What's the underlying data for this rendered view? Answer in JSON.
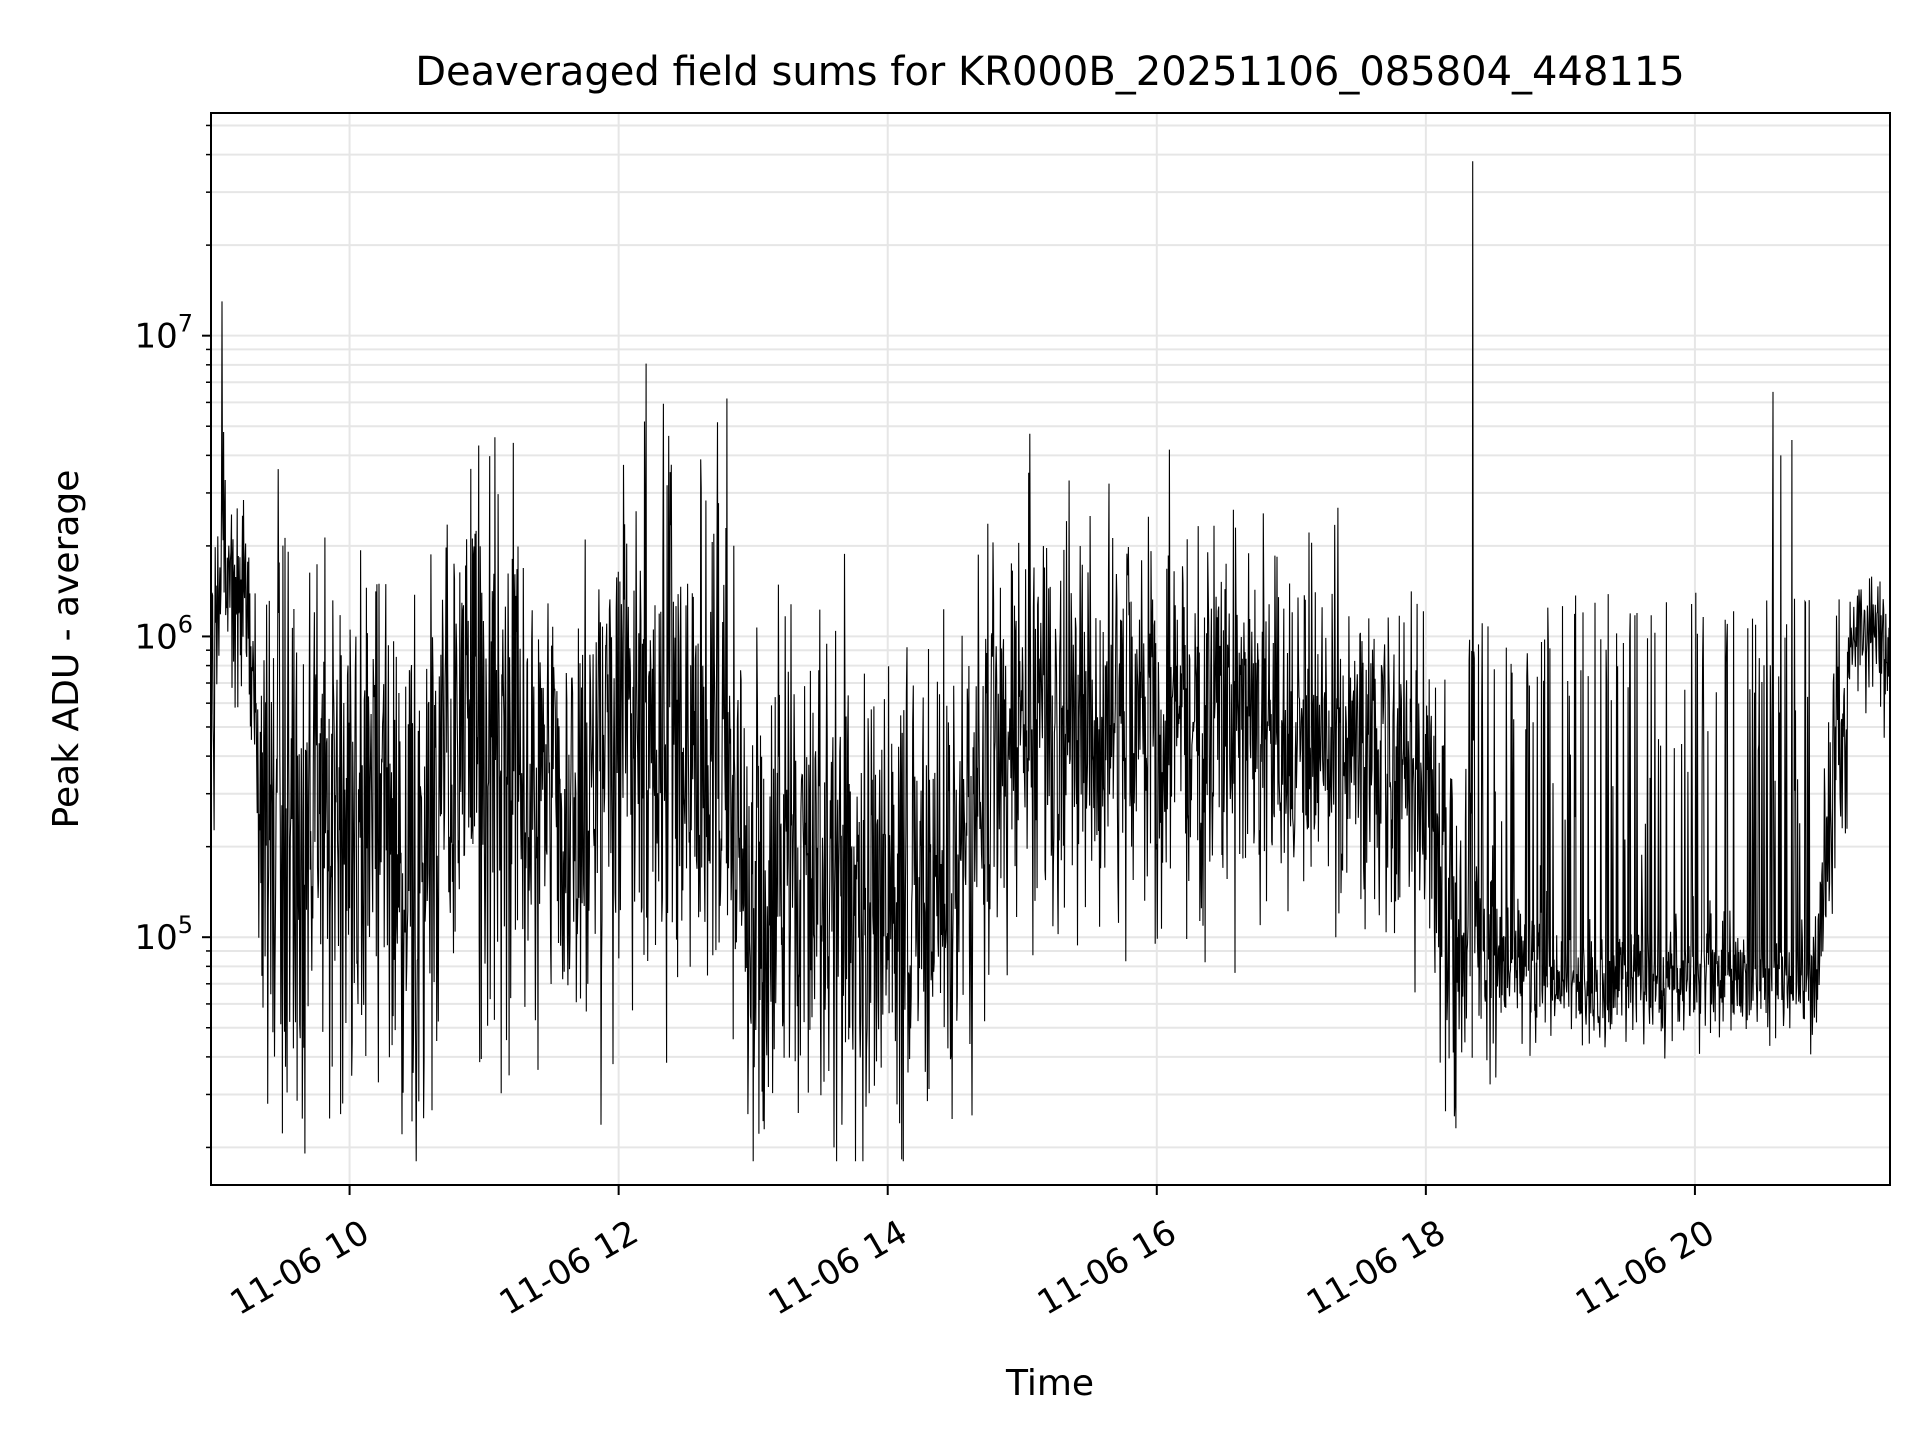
{
  "chart_data": {
    "type": "line",
    "title": "Deaveraged field sums for KR000B_20251106_085804_448115",
    "xlabel": "Time",
    "ylabel": "Peak ADU - average",
    "yscale": "log",
    "grid": true,
    "series_color": "#000000",
    "grid_color": "#e6e6e6",
    "xlim_hours": [
      8.97,
      21.45
    ],
    "ylim": [
      15000,
      55000000
    ],
    "x_ticks": [
      {
        "hour": 10,
        "label": "11-06 10"
      },
      {
        "hour": 12,
        "label": "11-06 12"
      },
      {
        "hour": 14,
        "label": "11-06 14"
      },
      {
        "hour": 16,
        "label": "11-06 16"
      },
      {
        "hour": 18,
        "label": "11-06 18"
      },
      {
        "hour": 20,
        "label": "11-06 20"
      }
    ],
    "y_ticks": [
      {
        "value": 100000,
        "base": "10",
        "exp": "5"
      },
      {
        "value": 1000000,
        "base": "10",
        "exp": "6"
      },
      {
        "value": 10000000,
        "base": "10",
        "exp": "7"
      }
    ],
    "series": [
      {
        "name": "Peak ADU - average",
        "envelope": {
          "hours": [
            8.97,
            9.05,
            9.25,
            9.35,
            9.5,
            9.8,
            10.2,
            10.6,
            10.8,
            11.0,
            11.3,
            11.7,
            12.0,
            12.4,
            12.8,
            13.0,
            13.3,
            13.6,
            13.8,
            14.0,
            14.3,
            14.5,
            14.8,
            15.1,
            15.5,
            15.8,
            16.1,
            16.5,
            16.9,
            17.3,
            17.7,
            18.0,
            18.25,
            18.6,
            19.0,
            19.5,
            20.0,
            20.5,
            20.9,
            21.05,
            21.2,
            21.45
          ],
          "medians": [
            600000,
            1600000,
            1300000,
            200000,
            170000,
            250000,
            220000,
            180000,
            600000,
            500000,
            320000,
            330000,
            520000,
            500000,
            360000,
            130000,
            170000,
            130000,
            110000,
            150000,
            140000,
            180000,
            500000,
            560000,
            500000,
            560000,
            520000,
            480000,
            520000,
            460000,
            400000,
            330000,
            110000,
            80000,
            70000,
            70000,
            70000,
            70000,
            70000,
            400000,
            1000000,
            950000
          ],
          "spreads": [
            0.35,
            0.18,
            0.2,
            0.45,
            0.45,
            0.45,
            0.45,
            0.45,
            0.35,
            0.45,
            0.45,
            0.45,
            0.45,
            0.45,
            0.45,
            0.4,
            0.4,
            0.42,
            0.42,
            0.4,
            0.4,
            0.38,
            0.35,
            0.35,
            0.35,
            0.35,
            0.32,
            0.3,
            0.3,
            0.28,
            0.28,
            0.3,
            0.35,
            0.12,
            0.1,
            0.1,
            0.1,
            0.1,
            0.1,
            0.3,
            0.1,
            0.14
          ]
        },
        "bursts": [
          {
            "start_hour": 18.3,
            "end_hour": 20.85,
            "count": 130,
            "low": 120000,
            "high": 1400000
          }
        ],
        "spikes": [
          {
            "hour": 9.05,
            "value": 13000000
          },
          {
            "hour": 9.47,
            "value": 3600000
          },
          {
            "hour": 15.05,
            "value": 3500000
          },
          {
            "hour": 15.35,
            "value": 3300000
          },
          {
            "hour": 18.35,
            "value": 38000000
          },
          {
            "hour": 20.58,
            "value": 6500000
          },
          {
            "hour": 20.72,
            "value": 4500000
          },
          {
            "hour": 20.64,
            "value": 4000000
          },
          {
            "hour": 13.6,
            "value": 20000
          },
          {
            "hour": 13.08,
            "value": 23000
          },
          {
            "hour": 9.95,
            "value": 28000
          },
          {
            "hour": 10.55,
            "value": 25000
          }
        ]
      }
    ]
  }
}
